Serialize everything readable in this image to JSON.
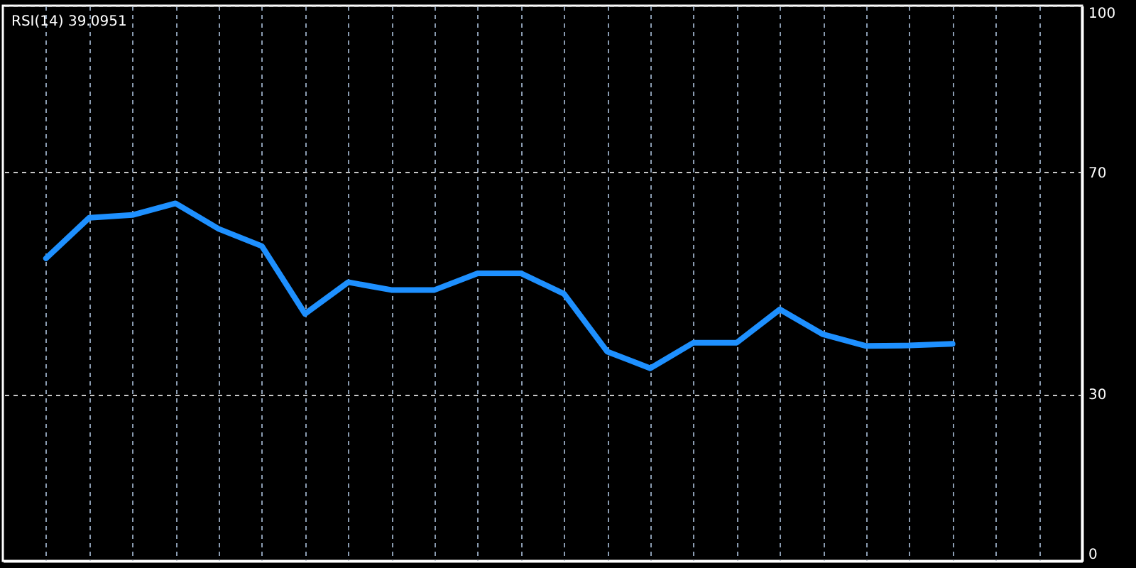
{
  "chart_data": {
    "type": "line",
    "title": "RSI(14) 39.0951",
    "categories": [
      null,
      null,
      null,
      null,
      null,
      null,
      null,
      null,
      null,
      null,
      null,
      null,
      null,
      null,
      null,
      null,
      null,
      null,
      null,
      null,
      null,
      null,
      null,
      null
    ],
    "series": [
      {
        "color": "#1e90ff",
        "values": [
          54.5,
          61.8,
          62.3,
          64.4,
          59.8,
          56.7,
          44.5,
          50.2,
          48.8,
          48.8,
          51.8,
          51.8,
          48.1,
          37.7,
          34.7,
          39.3,
          39.3,
          45.3,
          40.8,
          38.7,
          38.8,
          39.1,
          null,
          null
        ]
      }
    ],
    "ylim": [
      0,
      100
    ],
    "yticks": [
      0,
      30,
      70,
      100
    ],
    "grid": true,
    "tick_labels": "y",
    "line_style": "solid"
  }
}
